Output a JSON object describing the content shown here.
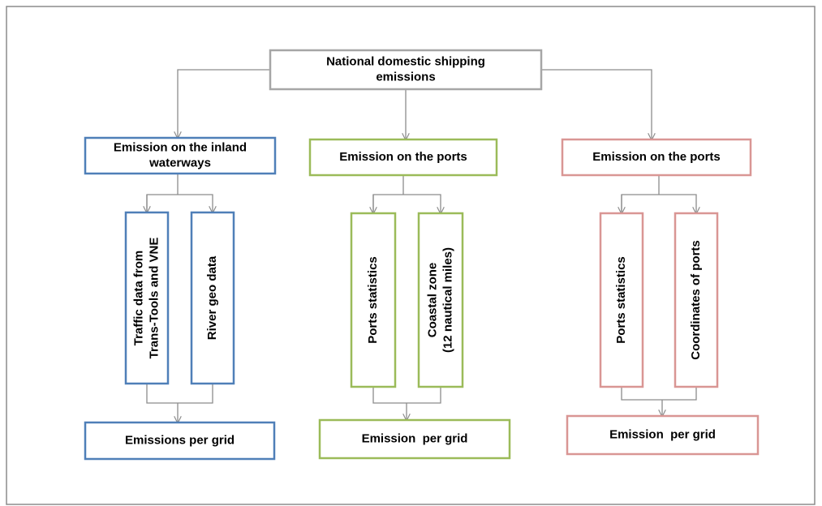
{
  "nodes": [
    {
      "lines": [
        "National domestic shipping",
        "emissions"
      ]
    },
    {
      "lines": [
        "Emission on the inland",
        "waterways"
      ]
    },
    {
      "lines": [
        "Emission on the ports"
      ]
    },
    {
      "lines": [
        "Emission on the ports"
      ]
    },
    {
      "lines": [
        "Traffic data from",
        "Trans-Tools and VNE"
      ]
    },
    {
      "lines": [
        "River geo data"
      ]
    },
    {
      "lines": [
        "Ports statistics"
      ]
    },
    {
      "lines": [
        "Coastal zone",
        "(12 nautical miles)"
      ]
    },
    {
      "lines": [
        "Ports statistics"
      ]
    },
    {
      "lines": [
        "Coordinates of ports"
      ]
    },
    {
      "lines": [
        "Emissions per grid"
      ]
    },
    {
      "lines": [
        "Emission  per grid"
      ]
    },
    {
      "lines": [
        "Emission  per grid"
      ]
    }
  ]
}
